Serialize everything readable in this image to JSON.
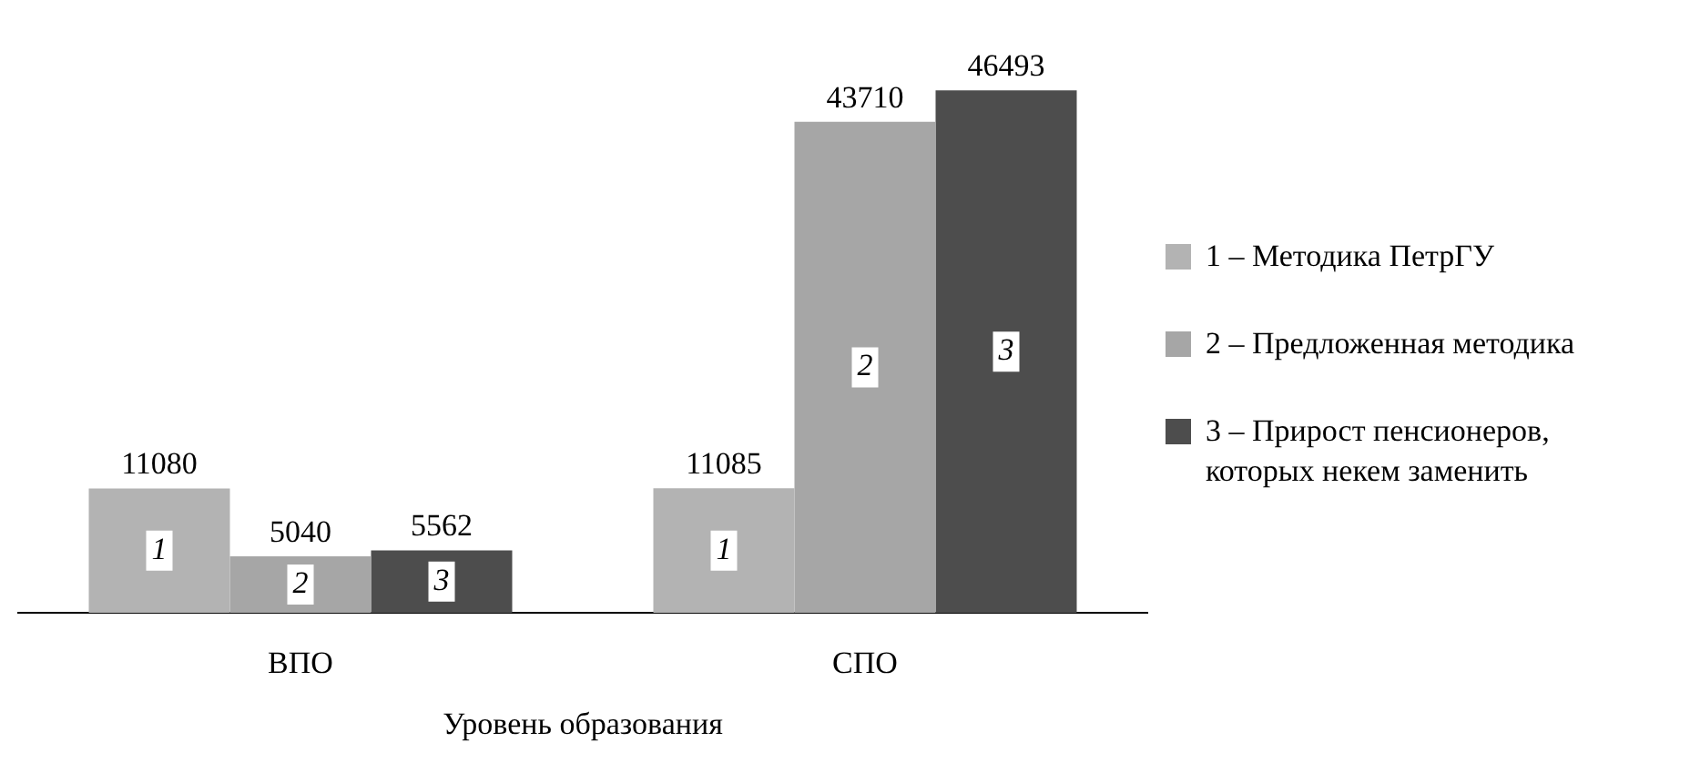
{
  "chart_data": {
    "type": "bar",
    "xlabel": "Уровень образования",
    "categories": [
      "ВПО",
      "СПО"
    ],
    "series": [
      {
        "name": "1 – Методика ПетрГУ",
        "color": "#b3b3b3",
        "values": [
          11080,
          11085
        ]
      },
      {
        "name": "2 – Предложенная методика",
        "color": "#a6a6a6",
        "values": [
          5040,
          43710
        ]
      },
      {
        "name": "3 – Прирост пенсионеров, которых некем заменить",
        "color": "#4d4d4d",
        "values": [
          5562,
          46493
        ]
      }
    ],
    "data_labels": true,
    "legend": "right",
    "grid": false,
    "annotations": [
      "1",
      "2",
      "3",
      "1",
      "2",
      "3"
    ]
  }
}
